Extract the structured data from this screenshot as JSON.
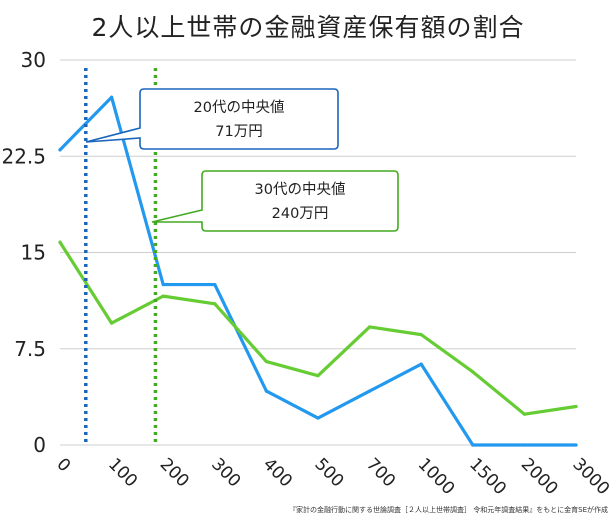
{
  "chart_data": {
    "type": "line",
    "title": "2人以上世帯の金融資産保有額の割合",
    "xlabel": "",
    "ylabel": "",
    "categories": [
      "0",
      "100",
      "200",
      "300",
      "400",
      "500",
      "700",
      "1000",
      "1500",
      "2000",
      "3000"
    ],
    "yticks": [
      "0",
      "7.5",
      "15",
      "22.5",
      "30"
    ],
    "ylim": [
      0,
      30
    ],
    "grid": true,
    "series": [
      {
        "name": "20代",
        "color": "#2299ee",
        "values": [
          23,
          27.1,
          12.5,
          12.5,
          4.2,
          2.1,
          4.2,
          6.3,
          0,
          0,
          0
        ]
      },
      {
        "name": "30代",
        "color": "#66cc33",
        "values": [
          15.8,
          9.5,
          11.6,
          11,
          6.5,
          5.4,
          9.2,
          8.6,
          5.7,
          2.4,
          3
        ]
      }
    ],
    "markers": [
      {
        "category_position": 0.5,
        "color": "#1a66bb",
        "style": "dotted"
      },
      {
        "category_position": 1.85,
        "color": "#44aa22",
        "style": "dotted"
      }
    ],
    "annotations": [
      {
        "line1": "20代の中央値",
        "line2": "71万円",
        "border": "#1a66bb"
      },
      {
        "line1": "30代の中央値",
        "line2": "240万円",
        "border": "#44aa22"
      }
    ]
  },
  "source": "『家計の金融行動に関する世論調査［２人以上世帯調査］ 令和元年調査結果』をもとに金育SEが作成"
}
